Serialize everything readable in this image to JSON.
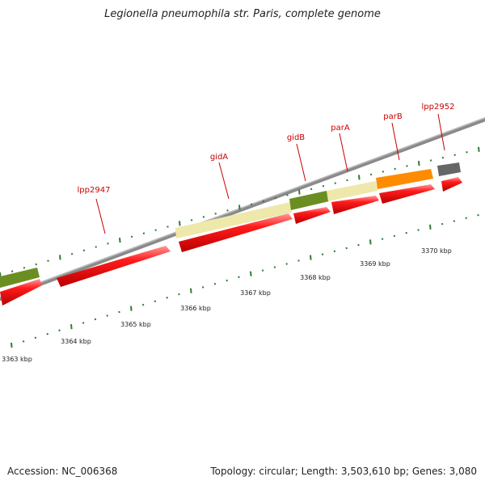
{
  "title": "Legionella pneumophila str. Paris, complete genome",
  "footer": {
    "accession": "Accession: NC_006368",
    "summary": "Topology: circular; Length: 3,503,610 bp; Genes: 3,080"
  },
  "ruler_labels": [
    "3363 kbp",
    "3364 kbp",
    "3365 kbp",
    "3366 kbp",
    "3367 kbp",
    "3368 kbp",
    "3369 kbp",
    "3370 kbp"
  ],
  "gene_labels": [
    "lpp2947",
    "gidA",
    "gidB",
    "parA",
    "parB",
    "lpp2952"
  ],
  "colors": {
    "cds": "#ff0000",
    "label": "#cc0000",
    "cog_green": "#6b8e23",
    "cog_khaki": "#eee8aa",
    "cog_orange": "#ff8c00",
    "cog_gray": "#666666",
    "tick": "#2e7d32",
    "backbone": "#808080"
  }
}
